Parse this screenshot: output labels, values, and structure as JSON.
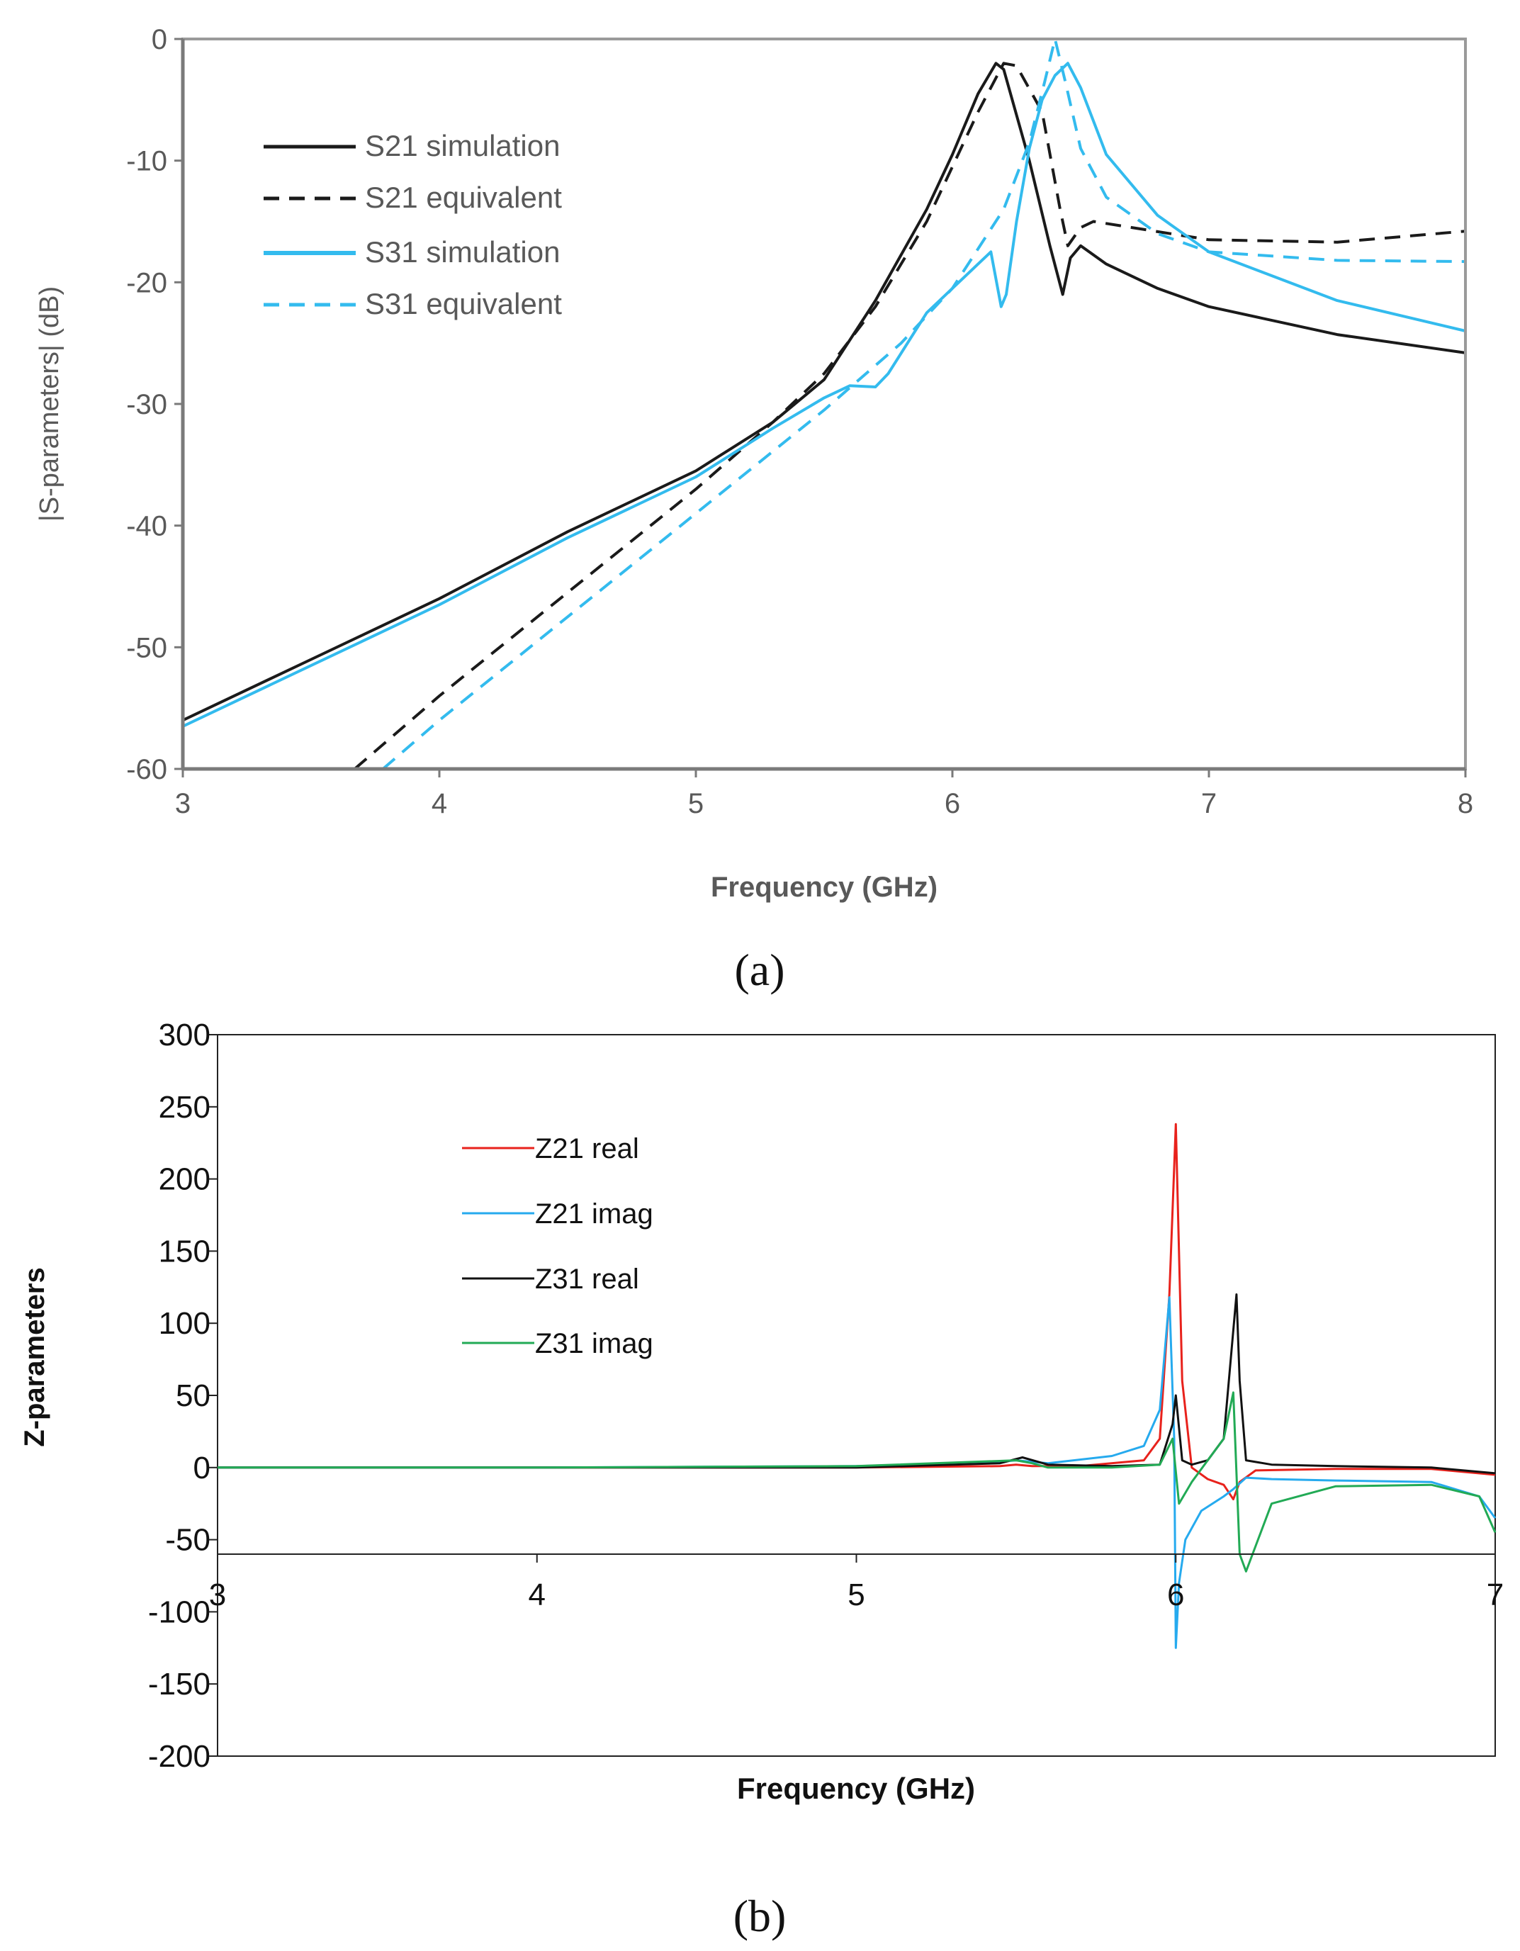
{
  "chart_data": [
    {
      "type": "line",
      "panel_label": "(a)",
      "title": "",
      "xlabel": "Frequency (GHz)",
      "ylabel": "|S-parameters| (dB)",
      "xlim": [
        3,
        8
      ],
      "ylim": [
        -60,
        0
      ],
      "xticks": [
        "3",
        "4",
        "5",
        "6",
        "7",
        "8"
      ],
      "yticks": [
        "0",
        "-10",
        "-20",
        "-30",
        "-40",
        "-50",
        "-60"
      ],
      "grid": false,
      "legend": "top-left",
      "series": [
        {
          "name": "S21 simulation",
          "color": "#1a1a1a",
          "dash": "solid",
          "x": [
            3.0,
            3.5,
            4.0,
            4.5,
            5.0,
            5.3,
            5.5,
            5.7,
            5.9,
            6.0,
            6.1,
            6.17,
            6.2,
            6.3,
            6.38,
            6.43,
            6.46,
            6.5,
            6.6,
            6.8,
            7.0,
            7.5,
            8.0
          ],
          "y": [
            -56.0,
            -51.0,
            -46.0,
            -40.5,
            -35.5,
            -31.5,
            -28.0,
            -21.5,
            -14.0,
            -9.5,
            -4.5,
            -2.0,
            -2.5,
            -10.0,
            -17.0,
            -21.0,
            -18.0,
            -17.0,
            -18.5,
            -20.5,
            -22.0,
            -24.3,
            -25.8
          ]
        },
        {
          "name": "S21 equivalent",
          "color": "#1a1a1a",
          "dash": "dashed",
          "x": [
            3.67,
            4.0,
            4.5,
            5.0,
            5.3,
            5.5,
            5.7,
            5.9,
            6.0,
            6.1,
            6.2,
            6.25,
            6.35,
            6.42,
            6.45,
            6.5,
            6.55,
            6.7,
            7.0,
            7.5,
            8.0
          ],
          "y": [
            -60.0,
            -54.0,
            -45.5,
            -37.0,
            -31.5,
            -27.5,
            -22.0,
            -15.0,
            -10.5,
            -6.0,
            -2.0,
            -2.2,
            -6.0,
            -14.0,
            -17.0,
            -15.5,
            -15.0,
            -15.5,
            -16.5,
            -16.7,
            -15.8
          ]
        },
        {
          "name": "S31 simulation",
          "color": "#33bbee",
          "dash": "solid",
          "x": [
            3.0,
            3.5,
            4.0,
            4.5,
            5.0,
            5.3,
            5.5,
            5.6,
            5.7,
            5.75,
            5.9,
            6.0,
            6.1,
            6.15,
            6.19,
            6.21,
            6.25,
            6.3,
            6.35,
            6.4,
            6.45,
            6.5,
            6.6,
            6.8,
            7.0,
            7.5,
            8.0
          ],
          "y": [
            -56.5,
            -51.5,
            -46.5,
            -41.0,
            -36.0,
            -32.0,
            -29.5,
            -28.5,
            -28.6,
            -27.5,
            -22.5,
            -20.5,
            -18.5,
            -17.5,
            -22.0,
            -21.0,
            -15.0,
            -9.0,
            -5.0,
            -3.0,
            -2.0,
            -4.0,
            -9.5,
            -14.5,
            -17.5,
            -21.5,
            -24.0
          ]
        },
        {
          "name": "S31 equivalent",
          "color": "#33bbee",
          "dash": "dashed",
          "x": [
            3.78,
            4.0,
            4.5,
            5.0,
            5.5,
            5.8,
            6.0,
            6.2,
            6.3,
            6.36,
            6.4,
            6.44,
            6.5,
            6.6,
            6.8,
            7.0,
            7.5,
            8.0
          ],
          "y": [
            -60.0,
            -56.0,
            -47.5,
            -39.0,
            -30.5,
            -25.0,
            -20.5,
            -14.0,
            -8.5,
            -3.5,
            0.0,
            -3.5,
            -9.0,
            -13.0,
            -16.0,
            -17.5,
            -18.2,
            -18.3
          ]
        }
      ]
    },
    {
      "type": "line",
      "panel_label": "(b)",
      "title": "",
      "xlabel": "Frequency (GHz)",
      "ylabel": "Z-parameters",
      "xlim": [
        3,
        7
      ],
      "ylim": [
        -200,
        300
      ],
      "xticks": [
        "3",
        "4",
        "5",
        "6",
        "7"
      ],
      "yticks": [
        "300",
        "250",
        "200",
        "150",
        "100",
        "50",
        "0",
        "-50",
        "-100",
        "-150",
        "-200"
      ],
      "x_axis_crosses_y": -60,
      "grid": false,
      "legend": "top-left",
      "series": [
        {
          "name": "Z21 real",
          "color": "#e8221c",
          "x": [
            3.0,
            4.0,
            5.0,
            5.45,
            5.5,
            5.55,
            5.7,
            5.9,
            5.95,
            5.98,
            6.0,
            6.02,
            6.05,
            6.1,
            6.15,
            6.18,
            6.2,
            6.25,
            6.5,
            6.8,
            7.0
          ],
          "y": [
            0,
            0,
            0,
            1,
            2,
            1,
            1,
            5,
            20,
            120,
            238,
            60,
            0,
            -8,
            -12,
            -22,
            -10,
            -2,
            -1,
            -1,
            -5
          ]
        },
        {
          "name": "Z21 imag",
          "color": "#26aaee",
          "x": [
            3.0,
            4.0,
            5.0,
            5.4,
            5.5,
            5.6,
            5.8,
            5.9,
            5.95,
            5.98,
            5.995,
            6.0,
            6.01,
            6.03,
            6.08,
            6.15,
            6.18,
            6.22,
            6.3,
            6.5,
            6.8,
            6.95,
            7.0
          ],
          "y": [
            0,
            0,
            1,
            3,
            5,
            3,
            8,
            15,
            40,
            118,
            20,
            -125,
            -80,
            -50,
            -30,
            -20,
            -15,
            -7,
            -8,
            -9,
            -10,
            -20,
            -35
          ]
        },
        {
          "name": "Z31 real",
          "color": "#111111",
          "x": [
            3.0,
            4.0,
            5.0,
            5.45,
            5.52,
            5.6,
            5.8,
            5.95,
            5.99,
            6.0,
            6.02,
            6.05,
            6.1,
            6.15,
            6.19,
            6.2,
            6.22,
            6.3,
            6.5,
            6.8,
            7.0
          ],
          "y": [
            0,
            0,
            0,
            3,
            7,
            2,
            1,
            2,
            30,
            50,
            5,
            2,
            5,
            20,
            120,
            60,
            5,
            2,
            1,
            0,
            -4
          ]
        },
        {
          "name": "Z31 imag",
          "color": "#22aa55",
          "x": [
            3.0,
            4.0,
            5.0,
            5.5,
            5.55,
            5.6,
            5.8,
            5.95,
            5.99,
            6.01,
            6.05,
            6.1,
            6.15,
            6.18,
            6.2,
            6.22,
            6.3,
            6.5,
            6.8,
            6.95,
            7.0
          ],
          "y": [
            0,
            0,
            1,
            5,
            3,
            0,
            0,
            2,
            20,
            -25,
            -10,
            5,
            20,
            52,
            -60,
            -72,
            -25,
            -13,
            -12,
            -20,
            -45
          ]
        }
      ]
    }
  ]
}
